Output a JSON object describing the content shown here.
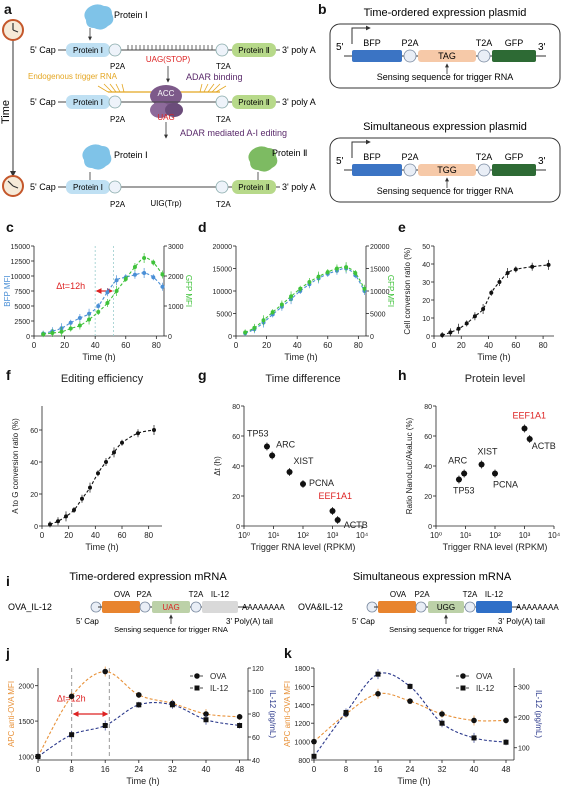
{
  "panels": {
    "a": "a",
    "b": "b",
    "c": "c",
    "d": "d",
    "e": "e",
    "f": "f",
    "g": "g",
    "h": "h",
    "i": "i",
    "j": "j",
    "k": "k"
  },
  "panel_a": {
    "time_label": "Time",
    "protein1": "Protein Ⅰ",
    "protein2": "Protein Ⅱ",
    "cap": "5' Cap",
    "polyA": "3' poly A",
    "box1": "Protein Ⅰ",
    "box2": "Protein Ⅱ",
    "p2a": "P2A",
    "t2a": "T2A",
    "stop": "UAG(STOP)",
    "trigger": "Endogenous trigger RNA",
    "adar_binding": "ADAR binding",
    "acc": "ACC",
    "uag": "UAG",
    "adar_editing": "ADAR mediated A-I editing",
    "uig": "UIG(Trp)"
  },
  "panel_b": {
    "title1": "Time-ordered expression plasmid",
    "title2": "Simultaneous expression plasmid",
    "five": "5'",
    "three": "3'",
    "bfp": "BFP",
    "p2a": "P2A",
    "t2a": "T2A",
    "gfp": "GFP",
    "tag": "TAG",
    "tgg": "TGG",
    "sensing": "Sensing sequence for trigger RNA"
  },
  "panel_i": {
    "title1": "Time-ordered expression mRNA",
    "title2": "Simultaneous expression mRNA",
    "name1": "OVA_IL-12",
    "name2": "OVA&IL-12",
    "ova": "OVA",
    "p2a": "P2A",
    "t2a": "T2A",
    "il12": "IL-12",
    "uag": "UAG",
    "ugg": "UGG",
    "tail": "AAAAAAAA",
    "cap": "5' Cap",
    "polyA": "3' Poly(A) tail",
    "sensing": "Sensing sequence for trigger RNA"
  },
  "chart_data": [
    {
      "panel": "c",
      "type": "line",
      "xlabel": "Time (h)",
      "ylabel": "BFP MFI",
      "y2label": "GFP MFI",
      "annotation": "Δt=12h",
      "xlim": [
        0,
        85
      ],
      "ylim": [
        0,
        15000
      ],
      "y2lim": [
        0,
        3000
      ],
      "xticks": [
        0,
        20,
        40,
        60,
        80
      ],
      "yticks": [
        0,
        2500,
        5000,
        7500,
        10000,
        12500,
        15000
      ],
      "y2ticks": [
        0,
        1000,
        2000,
        3000
      ],
      "series": [
        {
          "name": "BFP",
          "axis": "left",
          "color": "#4a8fd6",
          "x": [
            6,
            12,
            18,
            24,
            30,
            36,
            42,
            48,
            54,
            60,
            66,
            72,
            78,
            84
          ],
          "y": [
            400,
            800,
            1300,
            2200,
            3000,
            3700,
            5000,
            7300,
            9300,
            9800,
            10200,
            10500,
            9800,
            8200
          ]
        },
        {
          "name": "GFP",
          "axis": "right",
          "color": "#3fc23a",
          "x": [
            6,
            12,
            18,
            24,
            30,
            36,
            42,
            48,
            54,
            60,
            66,
            72,
            78,
            84
          ],
          "y": [
            60,
            100,
            140,
            250,
            350,
            550,
            800,
            1100,
            1500,
            1900,
            2300,
            2600,
            2450,
            2050
          ]
        }
      ]
    },
    {
      "panel": "d",
      "type": "line",
      "xlabel": "Time (h)",
      "ylabel": "",
      "y2label": "GFP MFI",
      "xlim": [
        0,
        85
      ],
      "ylim": [
        0,
        20000
      ],
      "y2lim": [
        0,
        20000
      ],
      "xticks": [
        0,
        20,
        40,
        60,
        80
      ],
      "yticks": [
        0,
        5000,
        10000,
        15000,
        20000
      ],
      "y2ticks": [
        0,
        5000,
        10000,
        15000,
        20000
      ],
      "series": [
        {
          "name": "BFP",
          "axis": "left",
          "color": "#4a8fd6",
          "x": [
            6,
            12,
            18,
            24,
            30,
            36,
            42,
            48,
            54,
            60,
            66,
            72,
            78,
            84
          ],
          "y": [
            600,
            1500,
            3000,
            4800,
            6500,
            8200,
            10000,
            11500,
            12800,
            13800,
            14500,
            15000,
            13500,
            10000
          ]
        },
        {
          "name": "GFP",
          "axis": "right",
          "color": "#3fc23a",
          "x": [
            6,
            12,
            18,
            24,
            30,
            36,
            42,
            48,
            54,
            60,
            66,
            72,
            78,
            84
          ],
          "y": [
            800,
            1800,
            3500,
            5300,
            7000,
            8800,
            10500,
            12000,
            13200,
            14200,
            15000,
            15300,
            14000,
            10500
          ]
        }
      ]
    },
    {
      "panel": "e",
      "type": "line",
      "xlabel": "Time (h)",
      "ylabel": "Cell conversion ratio (%)",
      "xlim": [
        0,
        88
      ],
      "ylim": [
        0,
        50
      ],
      "xticks": [
        0,
        20,
        40,
        60,
        80
      ],
      "yticks": [
        0,
        10,
        20,
        30,
        40,
        50
      ],
      "series": [
        {
          "color": "#111",
          "x": [
            6,
            12,
            18,
            24,
            30,
            36,
            42,
            48,
            54,
            60,
            72,
            84
          ],
          "y": [
            0.5,
            2,
            4,
            7,
            11,
            15,
            24,
            30,
            35,
            37,
            38.5,
            39.5
          ]
        }
      ]
    },
    {
      "panel": "f",
      "type": "line",
      "title": "Editing efficiency",
      "xlabel": "Time (h)",
      "ylabel": "A to G conversion ratio (%)",
      "xlim": [
        0,
        90
      ],
      "ylim": [
        0,
        75
      ],
      "xticks": [
        0,
        20,
        40,
        60,
        80
      ],
      "yticks": [
        0,
        20,
        40,
        60
      ],
      "series": [
        {
          "color": "#111",
          "x": [
            6,
            12,
            18,
            24,
            30,
            36,
            42,
            48,
            54,
            60,
            72,
            84
          ],
          "y": [
            1,
            3,
            6,
            10,
            17,
            24,
            33,
            40,
            46,
            52,
            58,
            60
          ]
        }
      ]
    },
    {
      "panel": "g",
      "type": "scatter",
      "title": "Time difference",
      "xlabel": "Trigger RNA level (RPKM)",
      "ylabel": "Δt (h)",
      "xscale": "log",
      "xlim": [
        1,
        10000
      ],
      "ylim": [
        0,
        80
      ],
      "xticks": [
        "10⁰",
        "10¹",
        "10²",
        "10³",
        "10⁴"
      ],
      "yticks": [
        0,
        20,
        40,
        60,
        80
      ],
      "points": [
        {
          "label": "TP53",
          "x": 6,
          "y": 53
        },
        {
          "label": "ARC",
          "x": 9,
          "y": 47
        },
        {
          "label": "XIST",
          "x": 35,
          "y": 36
        },
        {
          "label": "PCNA",
          "x": 100,
          "y": 28
        },
        {
          "label": "EEF1A1",
          "x": 1000,
          "y": 10
        },
        {
          "label": "ACTB",
          "x": 1500,
          "y": 4
        }
      ]
    },
    {
      "panel": "h",
      "type": "scatter",
      "title": "Protein level",
      "xlabel": "Trigger RNA level (RPKM)",
      "ylabel": "Ratio NanoLuc/AkaLuc (%)",
      "xscale": "log",
      "xlim": [
        1,
        10000
      ],
      "ylim": [
        0,
        80
      ],
      "xticks": [
        "10⁰",
        "10¹",
        "10²",
        "10³",
        "10⁴"
      ],
      "yticks": [
        0,
        20,
        40,
        60,
        80
      ],
      "points": [
        {
          "label": "TP53",
          "x": 6,
          "y": 31
        },
        {
          "label": "ARC",
          "x": 9,
          "y": 35
        },
        {
          "label": "XIST",
          "x": 35,
          "y": 41
        },
        {
          "label": "PCNA",
          "x": 100,
          "y": 35
        },
        {
          "label": "EEF1A1",
          "x": 1000,
          "y": 65
        },
        {
          "label": "ACTB",
          "x": 1500,
          "y": 58
        }
      ]
    },
    {
      "panel": "j",
      "type": "line",
      "xlabel": "Time (h)",
      "ylabel": "APC anti-OVA MFI",
      "y2label": "IL-12 (pg/mL)",
      "annotation": "Δt=12h",
      "xlim": [
        0,
        50
      ],
      "ylim": [
        950,
        2250
      ],
      "y2lim": [
        40,
        120
      ],
      "xticks": [
        0,
        8,
        16,
        24,
        32,
        40,
        48
      ],
      "yticks": [
        1000,
        1500,
        2000
      ],
      "y2ticks": [
        40,
        60,
        80,
        100,
        120
      ],
      "series": [
        {
          "name": "OVA",
          "axis": "left",
          "color": "#e8923a",
          "marker": "circle",
          "x": [
            0,
            8,
            16,
            24,
            32,
            40,
            48
          ],
          "y": [
            1000,
            1850,
            2200,
            1870,
            1750,
            1600,
            1560
          ]
        },
        {
          "name": "IL-12",
          "axis": "right",
          "color": "#2c3a8c",
          "marker": "square",
          "x": [
            0,
            8,
            16,
            24,
            32,
            40,
            48
          ],
          "y": [
            43,
            62,
            70,
            88,
            88,
            75,
            70
          ]
        }
      ]
    },
    {
      "panel": "k",
      "type": "line",
      "xlabel": "Time (h)",
      "ylabel": "APC anti-OVA MFI",
      "y2label": "IL-12 (pg/mL)",
      "xlim": [
        0,
        50
      ],
      "ylim": [
        800,
        1800
      ],
      "y2lim": [
        60,
        360
      ],
      "xticks": [
        0,
        8,
        16,
        24,
        32,
        40,
        48
      ],
      "yticks": [
        800,
        1000,
        1200,
        1400,
        1600,
        1800
      ],
      "y2ticks": [
        100,
        200,
        300
      ],
      "series": [
        {
          "name": "OVA",
          "axis": "left",
          "color": "#e8923a",
          "marker": "circle",
          "x": [
            0,
            8,
            16,
            24,
            32,
            40,
            48
          ],
          "y": [
            1000,
            1300,
            1520,
            1440,
            1300,
            1230,
            1230
          ]
        },
        {
          "name": "IL-12",
          "axis": "right",
          "color": "#2c3a8c",
          "marker": "square",
          "x": [
            0,
            8,
            16,
            24,
            32,
            40,
            48
          ],
          "y": [
            72,
            215,
            340,
            300,
            180,
            132,
            118
          ]
        }
      ]
    }
  ]
}
